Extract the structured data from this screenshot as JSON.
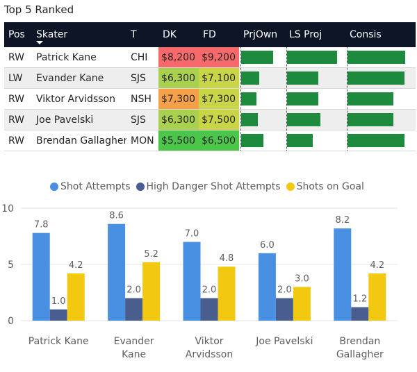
{
  "title": "Top 5 Ranked",
  "table": {
    "headers": [
      "Pos",
      "Skater",
      "T",
      "DK",
      "FD",
      "PrjOwn",
      "LS Proj",
      "Consis"
    ],
    "rows": [
      {
        "pos": "RW",
        "skater": "Patrick Kane",
        "team": "CHI",
        "dk": "$8,200",
        "fd": "$9,200",
        "prj_own": 0.74,
        "ls_proj": 1.0,
        "consis": 1.0
      },
      {
        "pos": "LW",
        "skater": "Evander Kane",
        "team": "SJS",
        "dk": "$6,300",
        "fd": "$7,100",
        "prj_own": 0.42,
        "ls_proj": 0.62,
        "consis": 0.99
      },
      {
        "pos": "RW",
        "skater": "Viktor Arvidsson",
        "team": "NSH",
        "dk": "$7,300",
        "fd": "$7,300",
        "prj_own": 0.36,
        "ls_proj": 0.62,
        "consis": 0.8
      },
      {
        "pos": "RW",
        "skater": "Joe Pavelski",
        "team": "SJS",
        "dk": "$6,300",
        "fd": "$7,500",
        "prj_own": 0.38,
        "ls_proj": 0.67,
        "consis": 0.8
      },
      {
        "pos": "RW",
        "skater": "Brendan Gallagher",
        "team": "MON",
        "dk": "$5,500",
        "fd": "$6,500",
        "prj_own": 0.52,
        "ls_proj": 0.52,
        "consis": 0.99
      }
    ],
    "dk_colors": [
      "#f8696b",
      "#a9d04f",
      "#f7a04a",
      "#a9d04f",
      "#4cc64a"
    ],
    "fd_colors": [
      "#f8696b",
      "#c9d447",
      "#c9d447",
      "#c9d447",
      "#4cc64a"
    ],
    "bar_color": "#1e8a3d"
  },
  "chart_data": {
    "type": "bar",
    "categories": [
      [
        "Patrick Kane"
      ],
      [
        "Evander",
        "Kane"
      ],
      [
        "Viktor",
        "Arvidsson"
      ],
      [
        "Joe Pavelski"
      ],
      [
        "Brendan",
        "Gallagher"
      ]
    ],
    "series": [
      {
        "name": "Shot Attempts",
        "color": "#4a90e2",
        "values": [
          7.8,
          8.6,
          7.0,
          6.0,
          8.2
        ]
      },
      {
        "name": "High Danger Shot Attempts",
        "color": "#4a5d8f",
        "values": [
          1.0,
          2.0,
          2.0,
          2.0,
          1.2
        ]
      },
      {
        "name": "Shots on Goal",
        "color": "#f2c811",
        "values": [
          4.2,
          5.2,
          4.8,
          3.0,
          4.2
        ]
      }
    ],
    "ylim": [
      0,
      10
    ],
    "yticks": [
      0,
      5,
      10
    ],
    "legend_position": "top"
  }
}
